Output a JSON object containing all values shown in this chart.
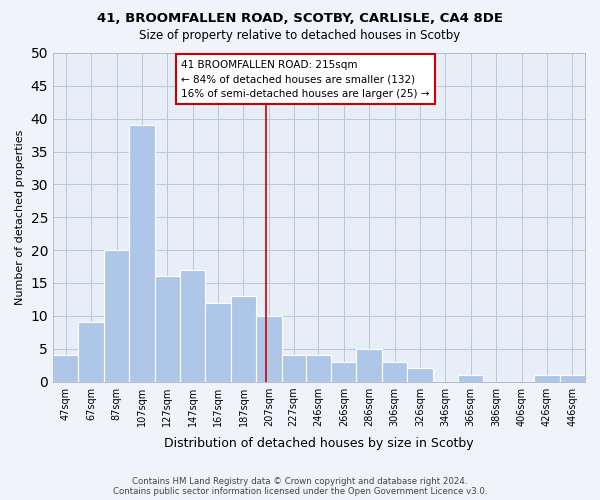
{
  "title1": "41, BROOMFALLEN ROAD, SCOTBY, CARLISLE, CA4 8DE",
  "title2": "Size of property relative to detached houses in Scotby",
  "xlabel": "Distribution of detached houses by size in Scotby",
  "ylabel": "Number of detached properties",
  "bar_labels": [
    "47sqm",
    "67sqm",
    "87sqm",
    "107sqm",
    "127sqm",
    "147sqm",
    "167sqm",
    "187sqm",
    "207sqm",
    "227sqm",
    "246sqm",
    "266sqm",
    "286sqm",
    "306sqm",
    "326sqm",
    "346sqm",
    "366sqm",
    "386sqm",
    "406sqm",
    "426sqm",
    "446sqm"
  ],
  "bar_heights": [
    4,
    9,
    20,
    39,
    16,
    17,
    12,
    13,
    10,
    4,
    4,
    3,
    5,
    3,
    2,
    0,
    1,
    0,
    0,
    1,
    1
  ],
  "bar_edges": [
    47,
    67,
    87,
    107,
    127,
    147,
    167,
    187,
    207,
    227,
    246,
    266,
    286,
    306,
    326,
    346,
    366,
    386,
    406,
    426,
    446,
    466
  ],
  "bar_color": "#aec6e8",
  "bar_edge_color": "#ffffff",
  "vline_x": 215,
  "vline_color": "#cc0000",
  "annotation_title": "41 BROOMFALLEN ROAD: 215sqm",
  "annotation_line1": "← 84% of detached houses are smaller (132)",
  "annotation_line2": "16% of semi-detached houses are larger (25) →",
  "annotation_box_color": "#ffffff",
  "annotation_border_color": "#cc0000",
  "ylim": [
    0,
    50
  ],
  "yticks": [
    0,
    5,
    10,
    15,
    20,
    25,
    30,
    35,
    40,
    45,
    50
  ],
  "footer1": "Contains HM Land Registry data © Crown copyright and database right 2024.",
  "footer2": "Contains public sector information licensed under the Open Government Licence v3.0.",
  "bg_color": "#f0f4fa",
  "plot_bg_color": "#e8eef8"
}
